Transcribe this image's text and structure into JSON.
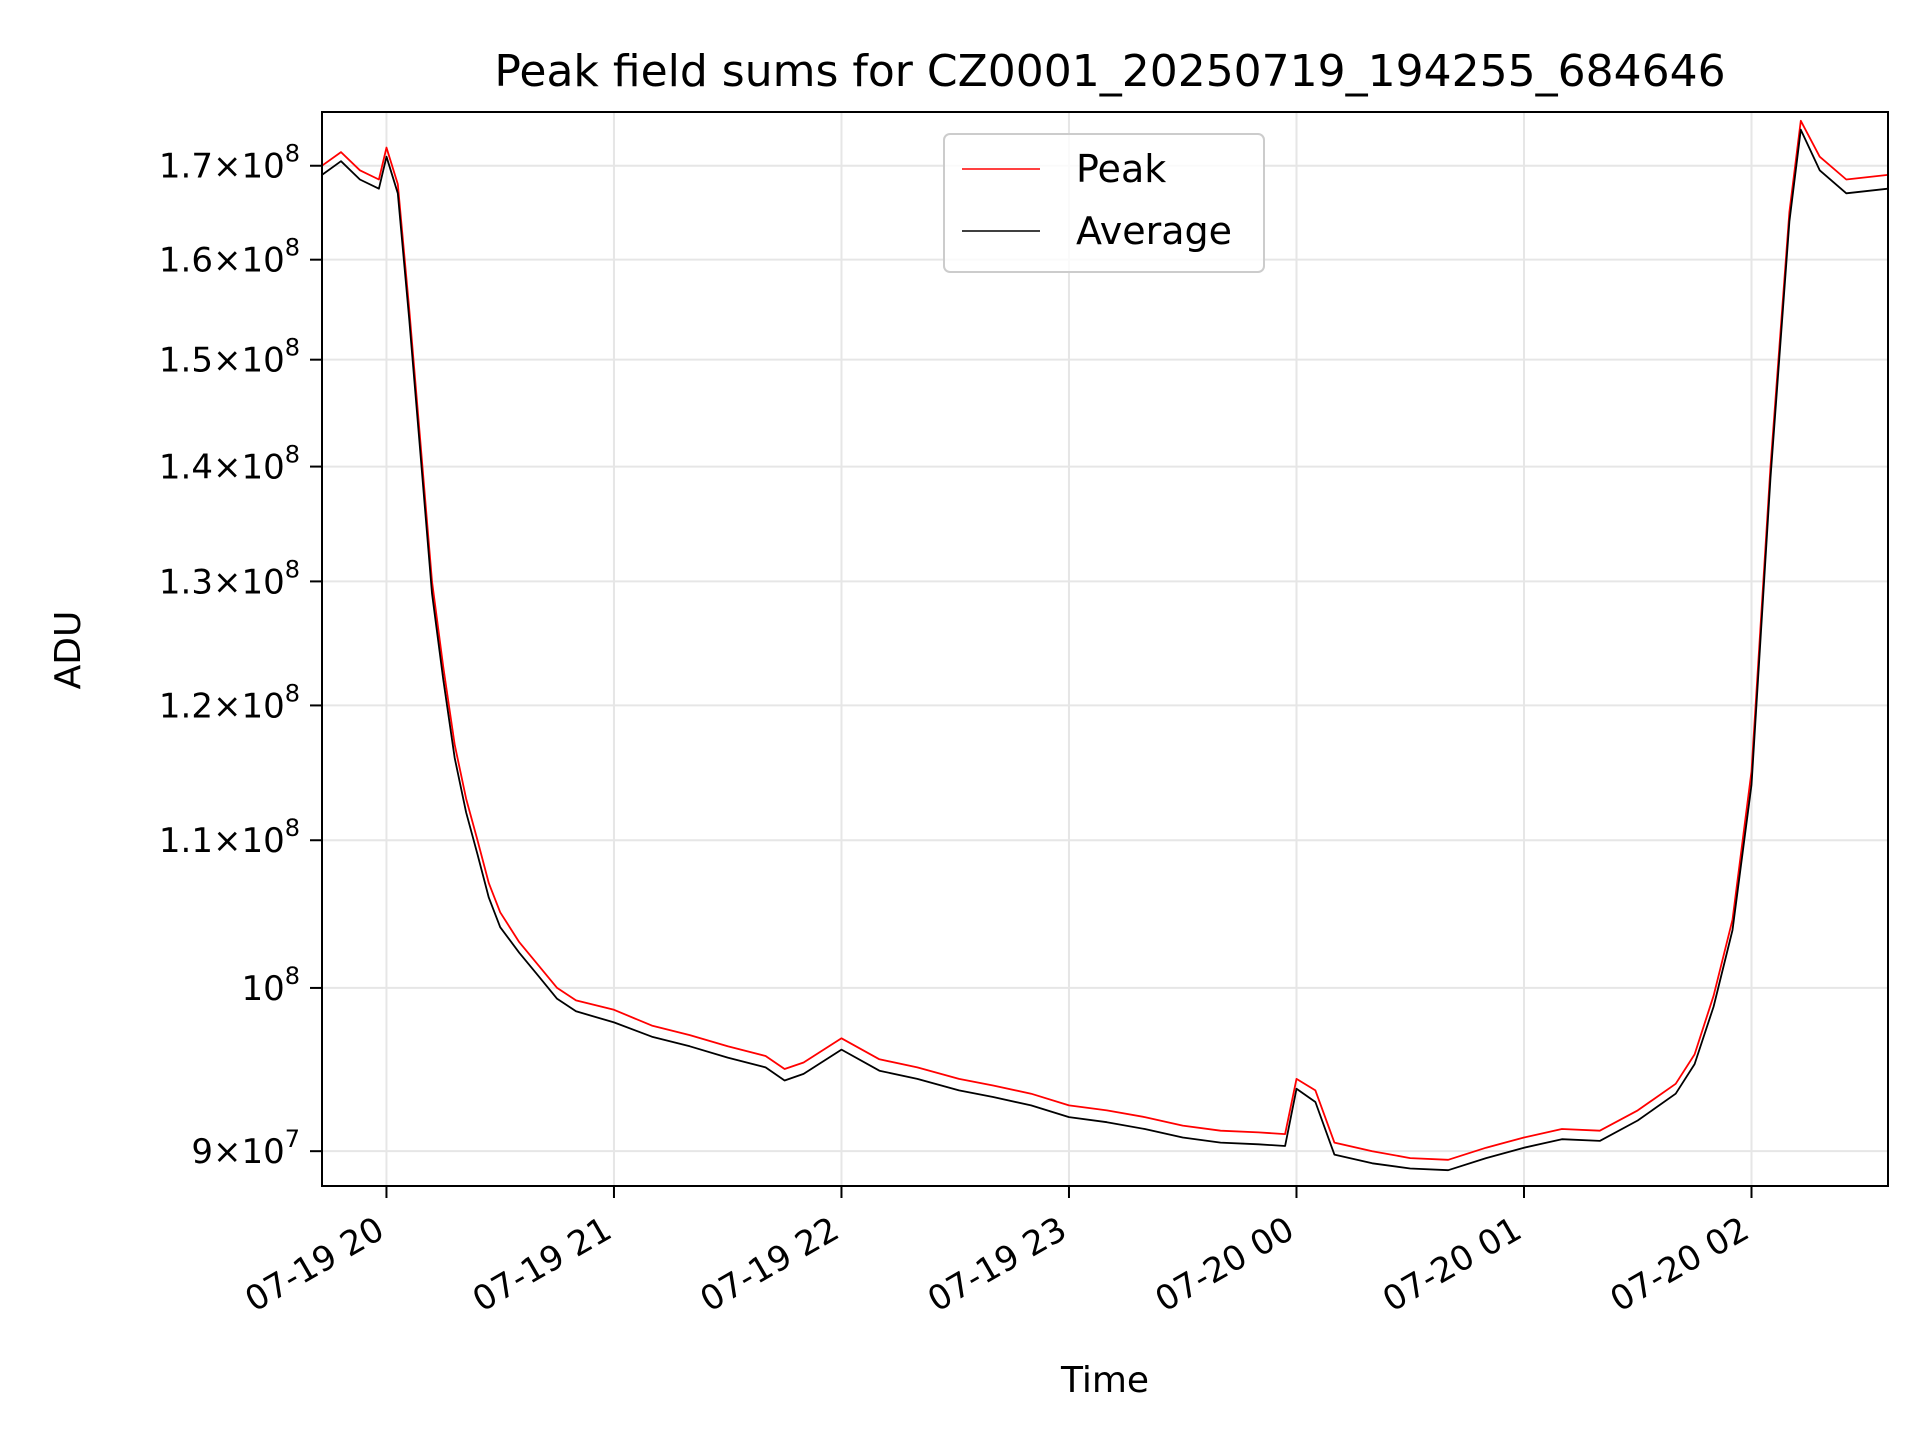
{
  "chart_data": {
    "type": "line",
    "title": "Peak field sums for CZ0001_20250719_194255_684646",
    "xlabel": "Time",
    "ylabel": "ADU",
    "x_scale": "time",
    "y_scale": "log",
    "xlim": [
      "2025-07-19 19:43",
      "2025-07-20 02:36"
    ],
    "ylim": [
      88000000,
      176000000
    ],
    "grid": true,
    "legend_position": "top-center",
    "x_ticks": [
      {
        "value": "2025-07-19 20:00",
        "label": "07-19 20"
      },
      {
        "value": "2025-07-19 21:00",
        "label": "07-19 21"
      },
      {
        "value": "2025-07-19 22:00",
        "label": "07-19 22"
      },
      {
        "value": "2025-07-19 23:00",
        "label": "07-19 23"
      },
      {
        "value": "2025-07-20 00:00",
        "label": "07-20 00"
      },
      {
        "value": "2025-07-20 01:00",
        "label": "07-20 01"
      },
      {
        "value": "2025-07-20 02:00",
        "label": "07-20 02"
      }
    ],
    "y_ticks": [
      {
        "value": 90000000,
        "mantissa": "9",
        "exponent": "7"
      },
      {
        "value": 100000000,
        "mantissa": "",
        "exponent": "8"
      },
      {
        "value": 110000000,
        "mantissa": "1.1",
        "exponent": "8"
      },
      {
        "value": 120000000,
        "mantissa": "1.2",
        "exponent": "8"
      },
      {
        "value": 130000000,
        "mantissa": "1.3",
        "exponent": "8"
      },
      {
        "value": 140000000,
        "mantissa": "1.4",
        "exponent": "8"
      },
      {
        "value": 150000000,
        "mantissa": "1.5",
        "exponent": "8"
      },
      {
        "value": 160000000,
        "mantissa": "1.6",
        "exponent": "8"
      },
      {
        "value": 170000000,
        "mantissa": "1.7",
        "exponent": "8"
      }
    ],
    "series": [
      {
        "name": "Peak",
        "color": "#ff0000",
        "x": [
          "2025-07-19 19:43",
          "2025-07-19 19:48",
          "2025-07-19 19:53",
          "2025-07-19 19:58",
          "2025-07-19 20:00",
          "2025-07-19 20:03",
          "2025-07-19 20:06",
          "2025-07-19 20:09",
          "2025-07-19 20:12",
          "2025-07-19 20:15",
          "2025-07-19 20:18",
          "2025-07-19 20:21",
          "2025-07-19 20:24",
          "2025-07-19 20:27",
          "2025-07-19 20:30",
          "2025-07-19 20:35",
          "2025-07-19 20:40",
          "2025-07-19 20:45",
          "2025-07-19 20:50",
          "2025-07-19 21:00",
          "2025-07-19 21:10",
          "2025-07-19 21:20",
          "2025-07-19 21:30",
          "2025-07-19 21:40",
          "2025-07-19 21:45",
          "2025-07-19 21:50",
          "2025-07-19 22:00",
          "2025-07-19 22:10",
          "2025-07-19 22:20",
          "2025-07-19 22:31",
          "2025-07-19 22:40",
          "2025-07-19 22:50",
          "2025-07-19 23:00",
          "2025-07-19 23:10",
          "2025-07-19 23:20",
          "2025-07-19 23:30",
          "2025-07-19 23:40",
          "2025-07-19 23:50",
          "2025-07-19 23:57",
          "2025-07-20 00:00",
          "2025-07-20 00:05",
          "2025-07-20 00:10",
          "2025-07-20 00:20",
          "2025-07-20 00:30",
          "2025-07-20 00:40",
          "2025-07-20 00:50",
          "2025-07-20 01:00",
          "2025-07-20 01:10",
          "2025-07-20 01:20",
          "2025-07-20 01:30",
          "2025-07-20 01:40",
          "2025-07-20 01:45",
          "2025-07-20 01:50",
          "2025-07-20 01:55",
          "2025-07-20 02:00",
          "2025-07-20 02:05",
          "2025-07-20 02:10",
          "2025-07-20 02:13",
          "2025-07-20 02:18",
          "2025-07-20 02:25",
          "2025-07-20 02:36"
        ],
        "y": [
          170000000,
          171500000,
          169500000,
          168500000,
          172000000,
          168000000,
          155000000,
          142000000,
          130000000,
          123000000,
          117000000,
          113000000,
          110000000,
          107000000,
          105000000,
          103000000,
          101500000,
          100000000,
          99200000,
          98600000,
          97600000,
          97000000,
          96300000,
          95700000,
          94900000,
          95300000,
          96800000,
          95500000,
          95000000,
          94300000,
          93900000,
          93400000,
          92700000,
          92400000,
          92000000,
          91500000,
          91200000,
          91100000,
          91000000,
          94300000,
          93600000,
          90500000,
          90000000,
          89600000,
          89500000,
          90200000,
          90800000,
          91300000,
          91200000,
          92400000,
          94000000,
          95800000,
          99500000,
          104500000,
          115000000,
          140000000,
          165000000,
          175000000,
          171000000,
          168500000,
          169000000
        ]
      },
      {
        "name": "Average",
        "color": "#000000",
        "x": [
          "2025-07-19 19:43",
          "2025-07-19 19:48",
          "2025-07-19 19:53",
          "2025-07-19 19:58",
          "2025-07-19 20:00",
          "2025-07-19 20:03",
          "2025-07-19 20:06",
          "2025-07-19 20:09",
          "2025-07-19 20:12",
          "2025-07-19 20:15",
          "2025-07-19 20:18",
          "2025-07-19 20:21",
          "2025-07-19 20:24",
          "2025-07-19 20:27",
          "2025-07-19 20:30",
          "2025-07-19 20:35",
          "2025-07-19 20:40",
          "2025-07-19 20:45",
          "2025-07-19 20:50",
          "2025-07-19 21:00",
          "2025-07-19 21:10",
          "2025-07-19 21:20",
          "2025-07-19 21:30",
          "2025-07-19 21:40",
          "2025-07-19 21:45",
          "2025-07-19 21:50",
          "2025-07-19 22:00",
          "2025-07-19 22:10",
          "2025-07-19 22:20",
          "2025-07-19 22:31",
          "2025-07-19 22:40",
          "2025-07-19 22:50",
          "2025-07-19 23:00",
          "2025-07-19 23:10",
          "2025-07-19 23:20",
          "2025-07-19 23:30",
          "2025-07-19 23:40",
          "2025-07-19 23:50",
          "2025-07-19 23:57",
          "2025-07-20 00:00",
          "2025-07-20 00:05",
          "2025-07-20 00:10",
          "2025-07-20 00:20",
          "2025-07-20 00:30",
          "2025-07-20 00:40",
          "2025-07-20 00:50",
          "2025-07-20 01:00",
          "2025-07-20 01:10",
          "2025-07-20 01:20",
          "2025-07-20 01:30",
          "2025-07-20 01:40",
          "2025-07-20 01:45",
          "2025-07-20 01:50",
          "2025-07-20 01:55",
          "2025-07-20 02:00",
          "2025-07-20 02:05",
          "2025-07-20 02:10",
          "2025-07-20 02:13",
          "2025-07-20 02:18",
          "2025-07-20 02:25",
          "2025-07-20 02:36"
        ],
        "y": [
          169000000,
          170500000,
          168500000,
          167500000,
          171000000,
          167000000,
          154000000,
          141000000,
          129000000,
          122000000,
          116000000,
          112000000,
          109000000,
          106000000,
          104000000,
          102300000,
          100800000,
          99300000,
          98500000,
          97800000,
          96900000,
          96300000,
          95600000,
          95000000,
          94200000,
          94600000,
          96100000,
          94800000,
          94300000,
          93600000,
          93200000,
          92700000,
          92000000,
          91700000,
          91300000,
          90800000,
          90500000,
          90400000,
          90300000,
          93700000,
          92900000,
          89800000,
          89300000,
          89000000,
          88900000,
          89600000,
          90200000,
          90700000,
          90600000,
          91800000,
          93400000,
          95200000,
          98800000,
          103800000,
          114000000,
          139000000,
          164000000,
          174000000,
          169500000,
          167000000,
          167500000
        ]
      }
    ]
  }
}
